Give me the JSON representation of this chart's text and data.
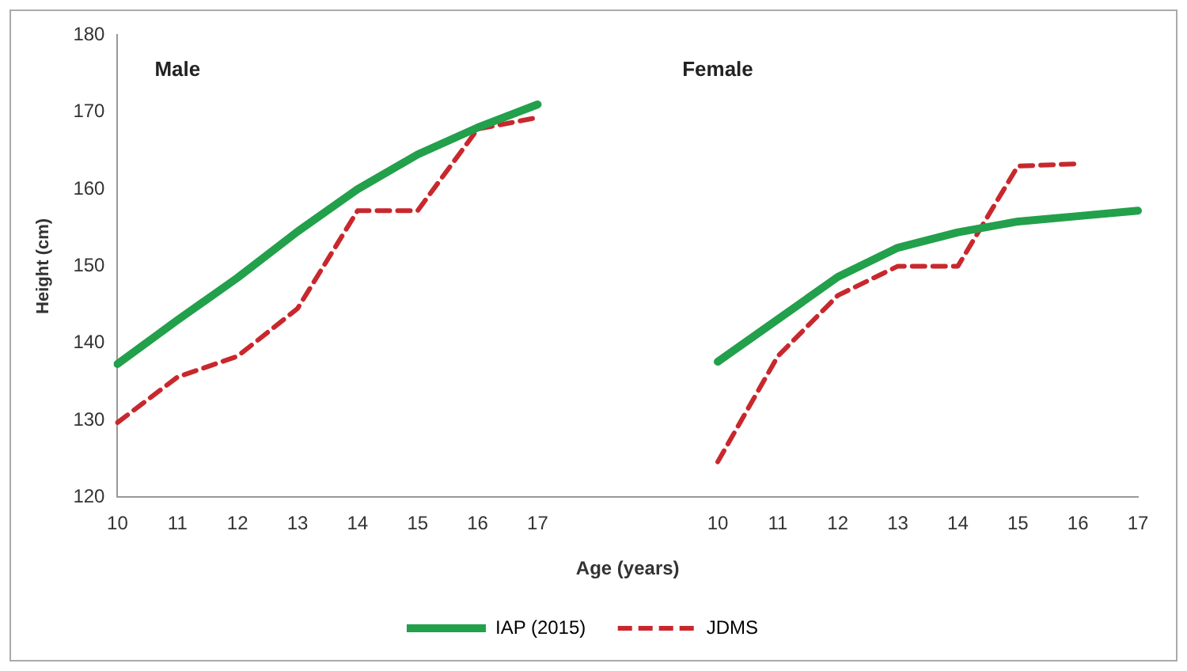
{
  "chart_data": {
    "type": "line",
    "xlabel": "Age (years)",
    "ylabel": "Height (cm)",
    "categories": [
      "10",
      "11",
      "12",
      "13",
      "14",
      "15",
      "16",
      "17",
      null,
      null,
      "10",
      "11",
      "12",
      "13",
      "14",
      "15",
      "16",
      "17"
    ],
    "series": [
      {
        "name": "IAP (2015)",
        "color": "#22a04b",
        "line_style": "solid",
        "values": [
          137.3,
          143,
          148.5,
          154.5,
          160,
          164.5,
          168,
          171,
          null,
          null,
          137.6,
          143.1,
          148.6,
          152.4,
          154.4,
          155.8,
          156.5,
          157.2
        ]
      },
      {
        "name": "JDMS",
        "color": "#c8282d",
        "line_style": "dashed",
        "values": [
          129.7,
          135.6,
          138.3,
          144.5,
          157.2,
          157.2,
          167.8,
          169.3,
          null,
          null,
          124.6,
          138.3,
          146.2,
          150,
          150,
          163,
          163.3,
          null
        ]
      }
    ],
    "ylim": [
      120,
      180
    ],
    "yticks": [
      120,
      130,
      140,
      150,
      160,
      170,
      180
    ],
    "grid": false,
    "legend": "bottom",
    "marker": "none",
    "annotations": [
      "Male",
      "Female"
    ]
  }
}
